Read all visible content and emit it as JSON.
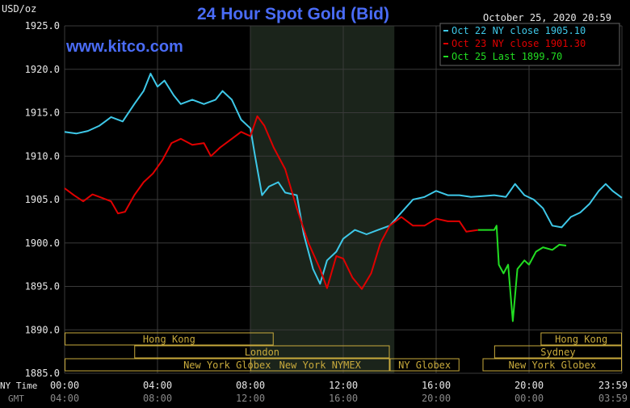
{
  "header": {
    "units": "USD/oz",
    "title": "24 Hour Spot Gold (Bid)",
    "timestamp": "October 25, 2020 20:59",
    "website": "www.kitco.com"
  },
  "legend": [
    {
      "label": "Oct 22 NY close 1905.10",
      "color": "#3ec8e8"
    },
    {
      "label": "Oct 23 NY close 1901.30",
      "color": "#e00000"
    },
    {
      "label": "Oct 25 Last 1899.70",
      "color": "#22dd22"
    }
  ],
  "x_row_labels": {
    "ny": "NY Time",
    "gmt": "GMT"
  },
  "sessions": [
    {
      "name": "Hong Kong",
      "start": 0,
      "end": 9
    },
    {
      "name": "London",
      "start": 3,
      "end": 14
    },
    {
      "name": "New York Globex",
      "start": 0,
      "end": 14
    },
    {
      "name": "New York NYMEX",
      "start": 8,
      "end": 14
    },
    {
      "name": "NY Globex",
      "start": 14,
      "end": 17
    },
    {
      "name": "Hong Kong",
      "start": 20.5,
      "end": 24
    },
    {
      "name": "Sydney",
      "start": 18.5,
      "end": 24
    },
    {
      "name": "New York Globex",
      "start": 18,
      "end": 24
    }
  ],
  "colors": {
    "background": "#000000",
    "shade": "#1b241b",
    "grid": "#3a3a3a",
    "axis_text": "#e8e8e8",
    "gmt_text": "#8a8a8a",
    "title": "#4a6cf7",
    "session_box": "#c8aa3c"
  },
  "chart_data": {
    "type": "line",
    "title": "24 Hour Spot Gold (Bid)",
    "ylabel": "USD/oz",
    "ylim": [
      1885,
      1925
    ],
    "xlim": [
      0,
      24
    ],
    "grid": true,
    "legend_position": "top-right",
    "y_ticks": [
      "1925.0",
      "1920.0",
      "1915.0",
      "1910.0",
      "1905.0",
      "1900.0",
      "1895.0",
      "1890.0",
      "1885.0"
    ],
    "x_ticks_ny": [
      "00:00",
      "04:00",
      "08:00",
      "12:00",
      "16:00",
      "20:00",
      "23:59"
    ],
    "x_ticks_gmt": [
      "04:00",
      "08:00",
      "12:00",
      "16:00",
      "20:00",
      "00:00",
      "03:59"
    ],
    "shaded_period": [
      8,
      14.2
    ],
    "series": [
      {
        "name": "Oct 22 NY close 1905.10",
        "color": "#3ec8e8",
        "points": [
          [
            0,
            1912.8
          ],
          [
            0.5,
            1912.6
          ],
          [
            1,
            1912.9
          ],
          [
            1.5,
            1913.5
          ],
          [
            2,
            1914.5
          ],
          [
            2.5,
            1914.0
          ],
          [
            3,
            1916
          ],
          [
            3.4,
            1917.5
          ],
          [
            3.7,
            1919.5
          ],
          [
            4,
            1918
          ],
          [
            4.3,
            1918.7
          ],
          [
            4.7,
            1917
          ],
          [
            5,
            1916
          ],
          [
            5.5,
            1916.5
          ],
          [
            6,
            1916
          ],
          [
            6.5,
            1916.5
          ],
          [
            6.8,
            1917.5
          ],
          [
            7.2,
            1916.5
          ],
          [
            7.6,
            1914.2
          ],
          [
            8,
            1913.2
          ],
          [
            8.2,
            1910
          ],
          [
            8.5,
            1905.5
          ],
          [
            8.8,
            1906.5
          ],
          [
            9.2,
            1907
          ],
          [
            9.5,
            1905.8
          ],
          [
            10,
            1905.5
          ],
          [
            10.3,
            1901
          ],
          [
            10.7,
            1897
          ],
          [
            11,
            1895.3
          ],
          [
            11.3,
            1898
          ],
          [
            11.7,
            1899
          ],
          [
            12,
            1900.5
          ],
          [
            12.5,
            1901.5
          ],
          [
            13,
            1901
          ],
          [
            13.5,
            1901.5
          ],
          [
            14,
            1902
          ],
          [
            14.5,
            1903.5
          ],
          [
            15,
            1905
          ],
          [
            15.5,
            1905.3
          ],
          [
            16,
            1906
          ],
          [
            16.5,
            1905.5
          ],
          [
            17,
            1905.5
          ],
          [
            17.5,
            1905.3
          ],
          [
            18,
            1905.4
          ],
          [
            18.5,
            1905.5
          ],
          [
            19,
            1905.3
          ],
          [
            19.4,
            1906.8
          ],
          [
            19.8,
            1905.5
          ],
          [
            20.2,
            1905
          ],
          [
            20.6,
            1904
          ],
          [
            21,
            1902
          ],
          [
            21.4,
            1901.8
          ],
          [
            21.8,
            1903
          ],
          [
            22.2,
            1903.5
          ],
          [
            22.6,
            1904.5
          ],
          [
            23,
            1906
          ],
          [
            23.3,
            1906.8
          ],
          [
            23.6,
            1906
          ],
          [
            24,
            1905.2
          ]
        ]
      },
      {
        "name": "Oct 23 NY close 1901.30",
        "color": "#e00000",
        "points": [
          [
            0,
            1906.3
          ],
          [
            0.4,
            1905.5
          ],
          [
            0.8,
            1904.8
          ],
          [
            1.2,
            1905.6
          ],
          [
            1.6,
            1905.2
          ],
          [
            2,
            1904.8
          ],
          [
            2.3,
            1903.4
          ],
          [
            2.6,
            1903.6
          ],
          [
            3,
            1905.5
          ],
          [
            3.4,
            1907
          ],
          [
            3.8,
            1908
          ],
          [
            4.2,
            1909.5
          ],
          [
            4.6,
            1911.5
          ],
          [
            5,
            1912
          ],
          [
            5.5,
            1911.3
          ],
          [
            6,
            1911.5
          ],
          [
            6.3,
            1910
          ],
          [
            6.7,
            1911
          ],
          [
            7.2,
            1912
          ],
          [
            7.6,
            1912.8
          ],
          [
            8,
            1912.3
          ],
          [
            8.3,
            1914.6
          ],
          [
            8.6,
            1913.5
          ],
          [
            9,
            1911
          ],
          [
            9.5,
            1908.5
          ],
          [
            10,
            1904
          ],
          [
            10.5,
            1900
          ],
          [
            11,
            1897
          ],
          [
            11.3,
            1894.8
          ],
          [
            11.7,
            1898.5
          ],
          [
            12,
            1898.2
          ],
          [
            12.4,
            1896
          ],
          [
            12.8,
            1894.7
          ],
          [
            13.2,
            1896.5
          ],
          [
            13.6,
            1900
          ],
          [
            14,
            1902
          ],
          [
            14.5,
            1903
          ],
          [
            15,
            1902
          ],
          [
            15.5,
            1902
          ],
          [
            16,
            1902.8
          ],
          [
            16.5,
            1902.5
          ],
          [
            17,
            1902.5
          ],
          [
            17.3,
            1901.3
          ],
          [
            17.8,
            1901.5
          ]
        ]
      },
      {
        "name": "Oct 25 Last 1899.70",
        "color": "#22dd22",
        "points": [
          [
            17.8,
            1901.5
          ],
          [
            18.5,
            1901.5
          ],
          [
            18.6,
            1902
          ],
          [
            18.7,
            1897.5
          ],
          [
            18.9,
            1896.5
          ],
          [
            19.1,
            1897.5
          ],
          [
            19.3,
            1891
          ],
          [
            19.5,
            1897
          ],
          [
            19.8,
            1898
          ],
          [
            20,
            1897.5
          ],
          [
            20.3,
            1899
          ],
          [
            20.6,
            1899.5
          ],
          [
            21,
            1899.2
          ],
          [
            21.3,
            1899.8
          ],
          [
            21.6,
            1899.7
          ]
        ]
      }
    ]
  }
}
